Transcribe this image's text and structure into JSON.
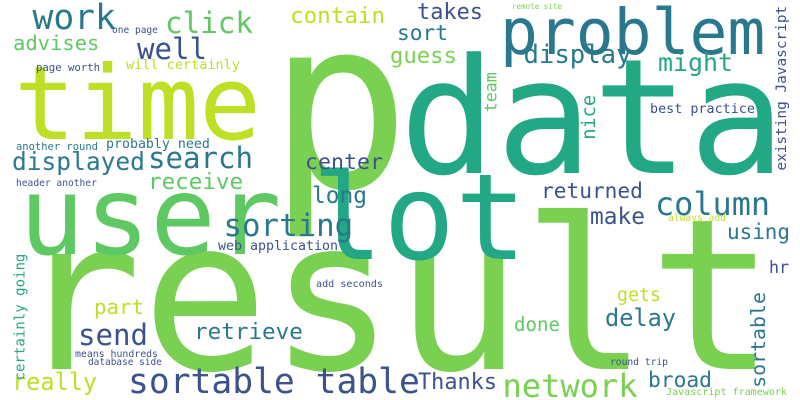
{
  "words": [
    {
      "text": "p",
      "color": "#7ad151"
    },
    {
      "text": "data",
      "color": "#22a884"
    },
    {
      "text": "result",
      "color": "#7ad151"
    },
    {
      "text": "user",
      "color": "#5ec962"
    },
    {
      "text": "time",
      "color": "#bddf26"
    },
    {
      "text": "lot",
      "color": "#22a884"
    },
    {
      "text": "problem",
      "color": "#2a788e"
    },
    {
      "text": "sortable table",
      "color": "#3b528b"
    },
    {
      "text": "network",
      "color": "#7ad151"
    },
    {
      "text": "column",
      "color": "#2a788e"
    },
    {
      "text": "sorting",
      "color": "#2a788e"
    },
    {
      "text": "search",
      "color": "#2a788e"
    },
    {
      "text": "work",
      "color": "#2a788e"
    },
    {
      "text": "click",
      "color": "#5ec962"
    },
    {
      "text": "well",
      "color": "#3b528b"
    },
    {
      "text": "might",
      "color": "#22a884"
    },
    {
      "text": "send",
      "color": "#3b528b"
    },
    {
      "text": "retrieve",
      "color": "#2a788e"
    },
    {
      "text": "Thanks",
      "color": "#3b528b"
    },
    {
      "text": "really",
      "color": "#bddf26"
    },
    {
      "text": "broad",
      "color": "#2a788e"
    },
    {
      "text": "displayed",
      "color": "#2a788e"
    },
    {
      "text": "receive",
      "color": "#5ec962"
    },
    {
      "text": "contain",
      "color": "#bddf26"
    },
    {
      "text": "takes",
      "color": "#3b528b"
    },
    {
      "text": "sort",
      "color": "#2a788e"
    },
    {
      "text": "guess",
      "color": "#7ad151"
    },
    {
      "text": "display",
      "color": "#2a788e"
    },
    {
      "text": "advises",
      "color": "#5ec962"
    },
    {
      "text": "center",
      "color": "#3b528b"
    },
    {
      "text": "long",
      "color": "#2a788e"
    },
    {
      "text": "returned",
      "color": "#3b528b"
    },
    {
      "text": "make",
      "color": "#3b528b"
    },
    {
      "text": "using",
      "color": "#2a788e"
    },
    {
      "text": "part",
      "color": "#bddf26"
    },
    {
      "text": "gets",
      "color": "#bddf26"
    },
    {
      "text": "delay",
      "color": "#2a788e"
    },
    {
      "text": "done",
      "color": "#5ec962"
    },
    {
      "text": "nice",
      "color": "#22a884"
    },
    {
      "text": "team",
      "color": "#5ec962"
    },
    {
      "text": "sortable",
      "color": "#2a788e"
    },
    {
      "text": "hr",
      "color": "#3b528b"
    },
    {
      "text": "web application",
      "color": "#3b528b"
    },
    {
      "text": "best practice",
      "color": "#3b528b"
    },
    {
      "text": "probably need",
      "color": "#2a788e"
    },
    {
      "text": "existing Javascript",
      "color": "#3b528b"
    },
    {
      "text": "another round",
      "color": "#2a788e"
    },
    {
      "text": "header another",
      "color": "#3b528b"
    },
    {
      "text": "page worth",
      "color": "#3b528b"
    },
    {
      "text": "will certainly",
      "color": "#bddf26"
    },
    {
      "text": "one page",
      "color": "#3b528b"
    },
    {
      "text": "remote site",
      "color": "#7ad151"
    },
    {
      "text": "certainly going",
      "color": "#22a884"
    },
    {
      "text": "means hundreds",
      "color": "#3b528b"
    },
    {
      "text": "database side",
      "color": "#3b528b"
    },
    {
      "text": "add seconds",
      "color": "#3b528b"
    },
    {
      "text": "round trip",
      "color": "#3b528b"
    },
    {
      "text": "always add",
      "color": "#bddf26"
    },
    {
      "text": "Javascript framework",
      "color": "#7ad151"
    }
  ]
}
